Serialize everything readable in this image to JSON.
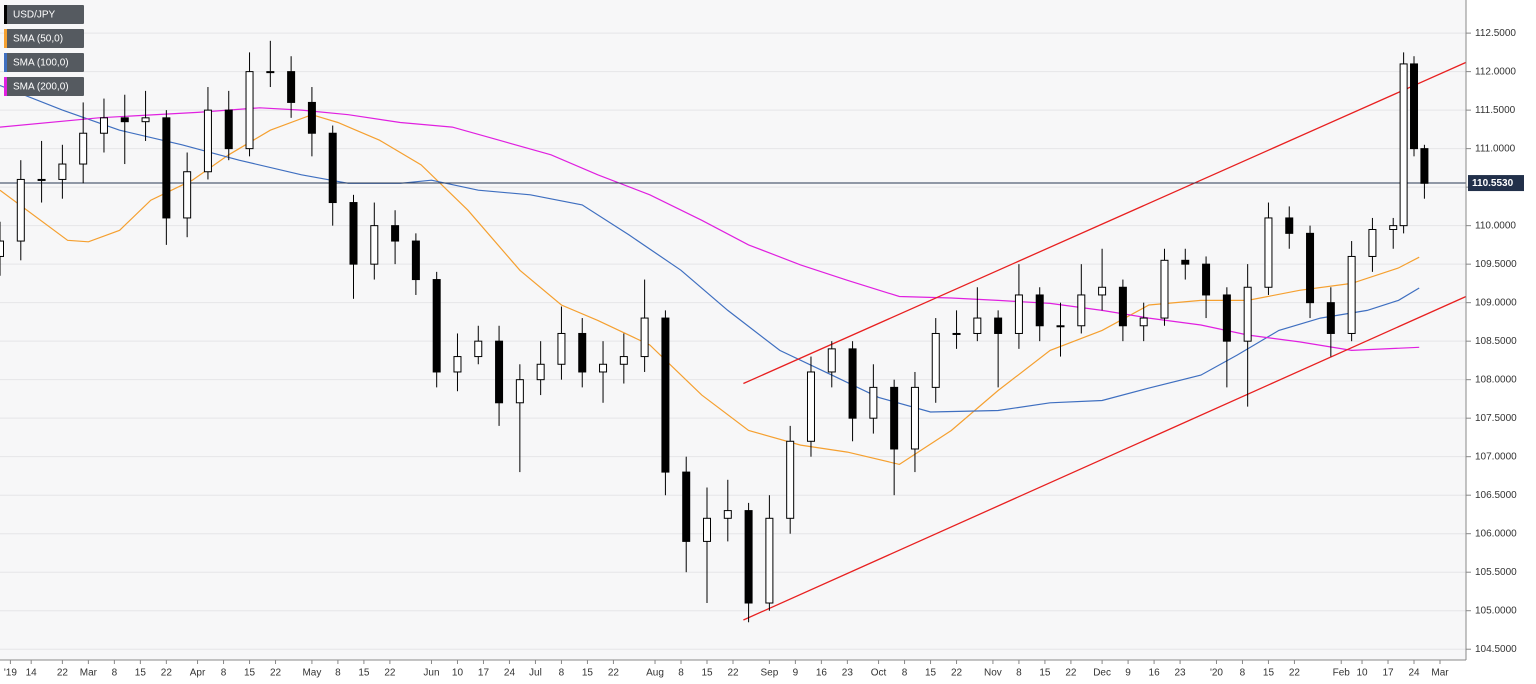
{
  "chart_data": {
    "type": "candlestick",
    "name": "USD/JPY",
    "color_up": "#ffffff",
    "color_down": "#000000",
    "x": [
      0,
      4,
      8,
      12,
      16,
      20,
      24,
      28,
      32,
      36,
      40,
      44,
      48,
      52,
      56,
      60,
      64,
      68,
      72,
      76,
      80,
      84,
      88,
      92,
      96,
      100,
      104,
      108,
      112,
      116,
      120,
      124,
      128,
      132,
      136,
      140,
      144,
      148,
      152,
      156,
      160,
      164,
      168,
      172,
      176,
      180,
      184,
      188,
      192,
      196,
      200,
      204,
      208,
      212,
      216,
      220,
      224,
      228,
      232,
      236,
      240,
      244,
      248,
      252,
      256,
      260,
      264,
      268,
      270,
      272,
      274
    ],
    "open": [
      109.6,
      109.8,
      110.6,
      110.6,
      110.8,
      111.2,
      111.4,
      111.35,
      111.4,
      110.1,
      110.7,
      111.5,
      111.0,
      112.0,
      112.0,
      111.6,
      111.2,
      110.3,
      109.5,
      110.0,
      109.8,
      109.3,
      108.1,
      108.3,
      108.5,
      107.7,
      108.0,
      108.2,
      108.6,
      108.1,
      108.2,
      108.3,
      108.8,
      106.8,
      105.9,
      106.2,
      106.3,
      105.1,
      106.2,
      107.2,
      108.1,
      108.4,
      107.5,
      107.9,
      107.1,
      107.9,
      108.6,
      108.6,
      108.8,
      108.6,
      109.1,
      108.7,
      108.7,
      109.1,
      109.2,
      108.7,
      108.8,
      109.55,
      109.5,
      109.1,
      108.5,
      109.2,
      110.1,
      109.9,
      109.0,
      108.6,
      109.6,
      109.95,
      110.0,
      112.1,
      111.0
    ],
    "high": [
      110.05,
      110.85,
      111.1,
      111.05,
      111.6,
      111.65,
      111.7,
      111.75,
      111.5,
      110.95,
      111.8,
      111.75,
      112.25,
      112.4,
      112.2,
      111.8,
      111.3,
      110.4,
      110.3,
      110.2,
      109.9,
      109.4,
      108.6,
      108.7,
      108.7,
      108.2,
      108.5,
      108.95,
      108.8,
      108.5,
      108.6,
      109.3,
      108.9,
      107.0,
      106.6,
      106.7,
      106.4,
      106.5,
      107.4,
      108.3,
      108.5,
      108.5,
      108.2,
      108.0,
      108.1,
      108.8,
      108.9,
      109.2,
      108.9,
      109.5,
      109.2,
      109.0,
      109.5,
      109.7,
      109.3,
      109.0,
      109.7,
      109.7,
      109.6,
      109.2,
      109.5,
      110.3,
      110.25,
      110.0,
      109.2,
      109.8,
      110.1,
      110.1,
      112.25,
      112.2,
      111.05
    ],
    "low": [
      109.35,
      109.55,
      110.3,
      110.35,
      110.55,
      110.95,
      110.8,
      111.1,
      109.75,
      109.85,
      110.6,
      110.85,
      110.9,
      111.8,
      111.4,
      110.9,
      110.0,
      109.05,
      109.3,
      109.5,
      109.1,
      107.9,
      107.85,
      108.2,
      107.4,
      106.8,
      107.8,
      108.0,
      107.9,
      107.7,
      107.95,
      108.1,
      106.5,
      105.5,
      105.1,
      105.9,
      104.85,
      105.0,
      106.0,
      107.0,
      107.9,
      107.2,
      107.3,
      106.5,
      106.8,
      107.7,
      108.4,
      108.5,
      107.9,
      108.4,
      108.5,
      108.3,
      108.6,
      108.9,
      108.5,
      108.5,
      108.7,
      109.3,
      108.8,
      107.9,
      107.65,
      109.1,
      109.7,
      108.8,
      108.3,
      108.5,
      109.4,
      109.7,
      109.9,
      110.9,
      110.35
    ],
    "close": [
      109.8,
      110.6,
      110.6,
      110.8,
      111.2,
      111.4,
      111.35,
      111.4,
      110.1,
      110.7,
      111.5,
      111.0,
      112.0,
      112.0,
      111.6,
      111.2,
      110.3,
      109.5,
      110.0,
      109.8,
      109.3,
      108.1,
      108.3,
      108.5,
      107.7,
      108.0,
      108.2,
      108.6,
      108.1,
      108.2,
      108.3,
      108.8,
      106.8,
      105.9,
      106.2,
      106.3,
      105.1,
      106.2,
      107.2,
      108.1,
      108.4,
      107.5,
      107.9,
      107.1,
      107.9,
      108.6,
      108.6,
      108.8,
      108.6,
      109.1,
      108.7,
      108.7,
      109.1,
      109.2,
      108.7,
      108.8,
      109.55,
      109.5,
      109.1,
      108.5,
      109.2,
      110.1,
      109.9,
      109.0,
      108.6,
      109.6,
      109.95,
      110.0,
      112.1,
      111.0,
      110.55
    ],
    "overlays": [
      {
        "name": "SMA (50,0)",
        "color": "#f5a030",
        "x": [
          0,
          13,
          17,
          23,
          29,
          37,
          44,
          52,
          60,
          65,
          73,
          81,
          90,
          100,
          108,
          115,
          125,
          135,
          144,
          154,
          163,
          173,
          183,
          192,
          202,
          212,
          221,
          231,
          240,
          250,
          260,
          269,
          273
        ],
        "values": [
          110.46,
          109.81,
          109.79,
          109.94,
          110.33,
          110.59,
          110.92,
          111.24,
          111.44,
          111.34,
          111.11,
          110.79,
          110.2,
          109.42,
          108.97,
          108.77,
          108.45,
          107.8,
          107.34,
          107.15,
          107.06,
          106.9,
          107.34,
          107.86,
          108.38,
          108.64,
          108.97,
          109.03,
          109.03,
          109.16,
          109.25,
          109.45,
          109.59
        ]
      },
      {
        "name": "SMA (100,0)",
        "color": "#3f6fc0",
        "x": [
          0,
          12,
          23,
          35,
          46,
          58,
          67,
          77,
          83,
          92,
          102,
          112,
          121,
          131,
          140,
          150,
          160,
          169,
          179,
          192,
          202,
          212,
          221,
          231,
          238,
          246,
          254,
          263,
          269,
          273
        ],
        "values": [
          111.82,
          111.5,
          111.24,
          111.05,
          110.85,
          110.66,
          110.55,
          110.55,
          110.59,
          110.46,
          110.4,
          110.27,
          109.88,
          109.42,
          108.9,
          108.38,
          108.06,
          107.77,
          107.58,
          107.6,
          107.7,
          107.73,
          107.89,
          108.06,
          108.32,
          108.64,
          108.8,
          108.9,
          109.03,
          109.19
        ]
      },
      {
        "name": "SMA (200,0)",
        "color": "#e020e0",
        "x": [
          0,
          19,
          38,
          50,
          58,
          67,
          77,
          87,
          96,
          106,
          115,
          125,
          135,
          144,
          154,
          163,
          173,
          183,
          192,
          202,
          212,
          221,
          231,
          240,
          250,
          260,
          273
        ],
        "values": [
          111.28,
          111.4,
          111.47,
          111.53,
          111.5,
          111.44,
          111.34,
          111.28,
          111.11,
          110.92,
          110.66,
          110.4,
          110.07,
          109.75,
          109.49,
          109.29,
          109.08,
          109.06,
          109.03,
          108.99,
          108.9,
          108.8,
          108.71,
          108.58,
          108.49,
          108.38,
          108.42
        ]
      }
    ],
    "channel_lines": [
      {
        "color": "#e82020",
        "x": [
          143,
          282
        ],
        "values": [
          107.95,
          112.12
        ]
      },
      {
        "color": "#e82020",
        "x": [
          143,
          282
        ],
        "values": [
          104.88,
          109.08
        ]
      }
    ],
    "last_price": {
      "value": 110.553,
      "label": "110.5530"
    },
    "xlim": [
      0,
      282
    ],
    "ylim": [
      104.36,
      112.93
    ],
    "xticks": [
      {
        "value": 2,
        "label": "'19"
      },
      {
        "value": 6,
        "label": "14"
      },
      {
        "value": 12,
        "label": "22"
      },
      {
        "value": 17,
        "label": "Mar"
      },
      {
        "value": 22,
        "label": "8"
      },
      {
        "value": 27,
        "label": "15"
      },
      {
        "value": 32,
        "label": "22"
      },
      {
        "value": 38,
        "label": "Apr"
      },
      {
        "value": 43,
        "label": "8"
      },
      {
        "value": 48,
        "label": "15"
      },
      {
        "value": 53,
        "label": "22"
      },
      {
        "value": 60,
        "label": "May"
      },
      {
        "value": 65,
        "label": "8"
      },
      {
        "value": 70,
        "label": "15"
      },
      {
        "value": 75,
        "label": "22"
      },
      {
        "value": 83,
        "label": "Jun"
      },
      {
        "value": 88,
        "label": "10"
      },
      {
        "value": 93,
        "label": "17"
      },
      {
        "value": 98,
        "label": "24"
      },
      {
        "value": 103,
        "label": "Jul"
      },
      {
        "value": 108,
        "label": "8"
      },
      {
        "value": 113,
        "label": "15"
      },
      {
        "value": 118,
        "label": "22"
      },
      {
        "value": 126,
        "label": "Aug"
      },
      {
        "value": 131,
        "label": "8"
      },
      {
        "value": 136,
        "label": "15"
      },
      {
        "value": 141,
        "label": "22"
      },
      {
        "value": 148,
        "label": "Sep"
      },
      {
        "value": 153,
        "label": "9"
      },
      {
        "value": 158,
        "label": "16"
      },
      {
        "value": 163,
        "label": "23"
      },
      {
        "value": 169,
        "label": "Oct"
      },
      {
        "value": 174,
        "label": "8"
      },
      {
        "value": 179,
        "label": "15"
      },
      {
        "value": 184,
        "label": "22"
      },
      {
        "value": 191,
        "label": "Nov"
      },
      {
        "value": 196,
        "label": "8"
      },
      {
        "value": 201,
        "label": "15"
      },
      {
        "value": 206,
        "label": "22"
      },
      {
        "value": 212,
        "label": "Dec"
      },
      {
        "value": 217,
        "label": "9"
      },
      {
        "value": 222,
        "label": "16"
      },
      {
        "value": 227,
        "label": "23"
      },
      {
        "value": 234,
        "label": "'20"
      },
      {
        "value": 239,
        "label": "8"
      },
      {
        "value": 244,
        "label": "15"
      },
      {
        "value": 249,
        "label": "22"
      },
      {
        "value": 258,
        "label": "Feb"
      },
      {
        "value": 262,
        "label": "10"
      },
      {
        "value": 267,
        "label": "17"
      },
      {
        "value": 272,
        "label": "24"
      },
      {
        "value": 277,
        "label": "Mar"
      }
    ],
    "yticks": [
      {
        "value": 104.5,
        "label": "104.5000"
      },
      {
        "value": 105,
        "label": "105.0000"
      },
      {
        "value": 105.5,
        "label": "105.5000"
      },
      {
        "value": 106,
        "label": "106.0000"
      },
      {
        "value": 106.5,
        "label": "106.5000"
      },
      {
        "value": 107,
        "label": "107.0000"
      },
      {
        "value": 107.5,
        "label": "107.5000"
      },
      {
        "value": 108,
        "label": "108.0000"
      },
      {
        "value": 108.5,
        "label": "108.5000"
      },
      {
        "value": 109,
        "label": "109.0000"
      },
      {
        "value": 109.5,
        "label": "109.5000"
      },
      {
        "value": 110,
        "label": "110.0000"
      },
      {
        "value": 110.5,
        "label": "110.5000"
      },
      {
        "value": 111,
        "label": "111.0000"
      },
      {
        "value": 111.5,
        "label": "111.5000"
      },
      {
        "value": 112,
        "label": "112.0000"
      },
      {
        "value": 112.5,
        "label": "112.5000"
      }
    ],
    "grid": true
  }
}
